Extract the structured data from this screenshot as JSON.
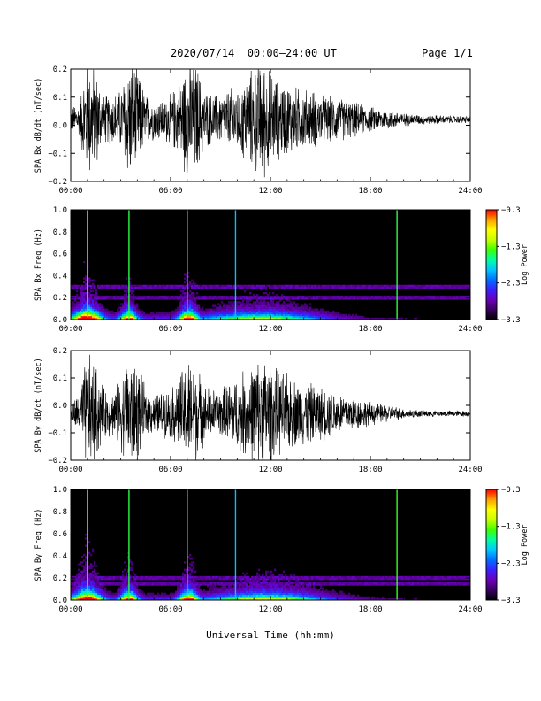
{
  "header": {
    "title": "2020/07/14  00:00–24:00 UT",
    "page": "Page 1/1"
  },
  "footer": {
    "xlabel": "Universal Time (hh:mm)"
  },
  "colors": {
    "trace": "#000000",
    "background": "#000000",
    "colormap": [
      "#000000",
      "#3a0060",
      "#6a00b8",
      "#3a20ff",
      "#0070ff",
      "#00c8ff",
      "#00ffa0",
      "#40ff00",
      "#c8ff00",
      "#ffff00",
      "#ffa000",
      "#ff0000"
    ]
  },
  "chart_data": [
    {
      "type": "line",
      "title": "",
      "xlabel": "",
      "ylabel": "SPA Bx dB/dt (nT/sec)",
      "xlim": [
        0,
        24
      ],
      "ylim": [
        -0.2,
        0.2
      ],
      "x_ticks": [
        "00:00",
        "06:00",
        "12:00",
        "18:00",
        "24:00"
      ],
      "y_ticks": [
        "0.2",
        "0.1",
        "0.0",
        "−0.1",
        "−0.2"
      ],
      "series": [
        {
          "envelope_hours": [
            0,
            0.5,
            1,
            1.5,
            2,
            2.5,
            3,
            3.5,
            4,
            4.5,
            5,
            5.5,
            6,
            6.5,
            7,
            7.5,
            8,
            8.5,
            9,
            9.5,
            10,
            10.5,
            11,
            11.5,
            12,
            12.5,
            13,
            13.5,
            14,
            14.5,
            15,
            15.5,
            16,
            16.5,
            17,
            17.5,
            18,
            18.5,
            19,
            19.5,
            20,
            21,
            22,
            23,
            24
          ],
          "amplitude": [
            0.05,
            0.07,
            0.25,
            0.2,
            0.1,
            0.1,
            0.12,
            0.25,
            0.2,
            0.1,
            0.08,
            0.09,
            0.1,
            0.15,
            0.25,
            0.24,
            0.12,
            0.1,
            0.1,
            0.12,
            0.14,
            0.18,
            0.2,
            0.24,
            0.2,
            0.16,
            0.15,
            0.13,
            0.12,
            0.12,
            0.1,
            0.09,
            0.09,
            0.08,
            0.07,
            0.06,
            0.05,
            0.045,
            0.04,
            0.035,
            0.025,
            0.02,
            0.018,
            0.015,
            0.015
          ],
          "offset": 0.02
        }
      ]
    },
    {
      "type": "heatmap",
      "title": "",
      "xlabel": "",
      "ylabel": "SPA Bx Freq (Hz)",
      "xlim": [
        0,
        24
      ],
      "ylim": [
        0.0,
        1.0
      ],
      "x_ticks": [
        "00:00",
        "06:00",
        "12:00",
        "18:00",
        "24:00"
      ],
      "y_ticks": [
        "1.0",
        "0.8",
        "0.6",
        "0.4",
        "0.2",
        "0.0"
      ],
      "colorbar": {
        "label": "Log Power",
        "range": [
          -3.3,
          -0.3
        ],
        "ticks": [
          "−0.3",
          "−1.3",
          "−2.3",
          "−3.3"
        ]
      },
      "bursts": [
        {
          "hour": 1.0,
          "width": 0.8,
          "strength": 1.0
        },
        {
          "hour": 3.5,
          "width": 0.5,
          "strength": 0.75
        },
        {
          "hour": 7.1,
          "width": 0.6,
          "strength": 0.85
        },
        {
          "hour": 11.5,
          "width": 3.5,
          "strength": 0.5
        }
      ],
      "vertical_lines": [
        {
          "hour": 1.0,
          "level": 0.55
        },
        {
          "hour": 3.5,
          "level": 0.6
        },
        {
          "hour": 7.0,
          "level": 0.55
        },
        {
          "hour": 9.9,
          "level": 0.45
        },
        {
          "hour": 19.6,
          "level": 0.6
        }
      ],
      "horizontal_bands_hz": [
        0.3,
        0.2
      ]
    },
    {
      "type": "line",
      "title": "",
      "xlabel": "",
      "ylabel": "SPA By dB/dt (nT/sec)",
      "xlim": [
        0,
        24
      ],
      "ylim": [
        -0.2,
        0.2
      ],
      "x_ticks": [
        "00:00",
        "06:00",
        "12:00",
        "18:00",
        "24:00"
      ],
      "y_ticks": [
        "0.2",
        "0.1",
        "0.0",
        "−0.1",
        "−0.2"
      ],
      "series": [
        {
          "envelope_hours": [
            0,
            0.5,
            1,
            1.5,
            2,
            2.5,
            3,
            3.5,
            4,
            4.5,
            5,
            5.5,
            6,
            6.5,
            7,
            7.5,
            8,
            8.5,
            9,
            9.5,
            10,
            10.5,
            11,
            11.5,
            12,
            12.5,
            13,
            13.5,
            14,
            14.5,
            15,
            15.5,
            16,
            16.5,
            17,
            17.5,
            18,
            18.5,
            19,
            19.5,
            20,
            21,
            22,
            23,
            24
          ],
          "amplitude": [
            0.04,
            0.08,
            0.25,
            0.2,
            0.1,
            0.09,
            0.14,
            0.25,
            0.2,
            0.1,
            0.08,
            0.09,
            0.1,
            0.15,
            0.22,
            0.2,
            0.12,
            0.1,
            0.1,
            0.13,
            0.15,
            0.18,
            0.2,
            0.25,
            0.2,
            0.17,
            0.16,
            0.14,
            0.13,
            0.12,
            0.11,
            0.1,
            0.09,
            0.08,
            0.07,
            0.06,
            0.05,
            0.04,
            0.035,
            0.03,
            0.02,
            0.015,
            0.012,
            0.012,
            0.012
          ],
          "offset": -0.03
        }
      ]
    },
    {
      "type": "heatmap",
      "title": "",
      "xlabel": "",
      "ylabel": "SPA By Freq (Hz)",
      "xlim": [
        0,
        24
      ],
      "ylim": [
        0.0,
        1.0
      ],
      "x_ticks": [
        "00:00",
        "06:00",
        "12:00",
        "18:00",
        "24:00"
      ],
      "y_ticks": [
        "1.0",
        "0.8",
        "0.6",
        "0.4",
        "0.2",
        "0.0"
      ],
      "colorbar": {
        "label": "Log Power",
        "range": [
          -3.3,
          -0.3
        ],
        "ticks": [
          "−0.3",
          "−1.3",
          "−2.3",
          "−3.3"
        ]
      },
      "bursts": [
        {
          "hour": 1.0,
          "width": 0.8,
          "strength": 1.0
        },
        {
          "hour": 3.5,
          "width": 0.5,
          "strength": 0.8
        },
        {
          "hour": 7.1,
          "width": 0.6,
          "strength": 0.85
        },
        {
          "hour": 11.8,
          "width": 3.5,
          "strength": 0.55
        }
      ],
      "vertical_lines": [
        {
          "hour": 1.0,
          "level": 0.55
        },
        {
          "hour": 3.5,
          "level": 0.6
        },
        {
          "hour": 7.0,
          "level": 0.55
        },
        {
          "hour": 9.9,
          "level": 0.45
        },
        {
          "hour": 19.6,
          "level": 0.62
        }
      ],
      "horizontal_bands_hz": [
        0.2,
        0.15
      ]
    }
  ]
}
